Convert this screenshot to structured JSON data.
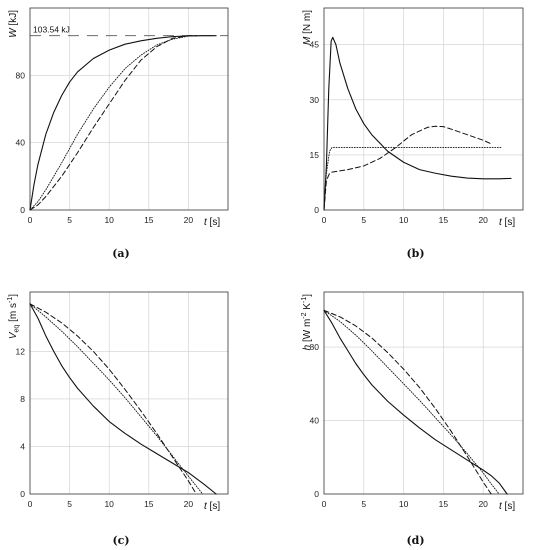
{
  "chart_data": [
    {
      "type": "line",
      "panel": "(a)",
      "ylabel": "W",
      "ylabel_unit": "[kJ]",
      "xlabel": "t",
      "xlabel_unit": "[s]",
      "xlim": [
        0,
        25
      ],
      "ylim": [
        0,
        120
      ],
      "xticks": [
        0,
        5,
        10,
        15,
        20
      ],
      "yticks": [
        0,
        40,
        80
      ],
      "annotation": "103.54 kJ",
      "reference_value": 103.54,
      "grid": true,
      "series": [
        {
          "style": "solid",
          "x": [
            0,
            0.5,
            1,
            2,
            3,
            4,
            5,
            6,
            8,
            10,
            12,
            14,
            16,
            18,
            20,
            22,
            23.5
          ],
          "y": [
            0,
            15,
            27,
            45,
            58,
            68,
            76,
            82,
            90,
            95,
            98.5,
            100.5,
            102,
            103,
            103.5,
            103.54,
            103.54
          ]
        },
        {
          "style": "dotted",
          "x": [
            0,
            1,
            2,
            4,
            6,
            8,
            10,
            12,
            14,
            16,
            18,
            20,
            21.5
          ],
          "y": [
            0,
            5,
            12,
            28,
            45,
            60,
            73,
            84,
            92,
            98,
            101.5,
            103.3,
            103.54
          ]
        },
        {
          "style": "dashed",
          "x": [
            0,
            1,
            2,
            4,
            6,
            8,
            10,
            12,
            14,
            16,
            18,
            20,
            21
          ],
          "y": [
            0,
            3,
            8,
            20,
            34,
            49,
            63,
            77,
            89,
            97,
            102,
            103.5,
            103.54
          ]
        }
      ]
    },
    {
      "type": "line",
      "panel": "(b)",
      "ylabel": "M",
      "ylabel_unit": "[N m]",
      "xlabel": "t",
      "xlabel_unit": "[s]",
      "xlim": [
        0,
        25
      ],
      "ylim": [
        0,
        55
      ],
      "xticks": [
        0,
        5,
        10,
        15,
        20
      ],
      "yticks": [
        0,
        15,
        30,
        45
      ],
      "grid": true,
      "series": [
        {
          "style": "solid",
          "x": [
            0,
            0.3,
            0.6,
            0.9,
            1.1,
            1.5,
            2,
            3,
            4,
            5,
            6,
            8,
            10,
            12,
            14,
            16,
            18,
            20,
            22,
            23.5
          ],
          "y": [
            0,
            12,
            33,
            46,
            47,
            45,
            40,
            33,
            27.5,
            23.5,
            20.5,
            16,
            13,
            11,
            10,
            9.2,
            8.7,
            8.5,
            8.5,
            8.6
          ]
        },
        {
          "style": "dotted",
          "x": [
            0,
            0.3,
            0.7,
            1,
            5,
            10,
            15,
            20,
            22.3
          ],
          "y": [
            0,
            10,
            16,
            17,
            17,
            17,
            17,
            17,
            17
          ]
        },
        {
          "style": "dashed",
          "x": [
            0,
            0.3,
            0.7,
            1,
            3,
            5,
            7,
            9,
            11,
            13,
            14,
            15,
            16,
            18,
            20,
            21
          ],
          "y": [
            0,
            8,
            10,
            10.3,
            11,
            12,
            14,
            17,
            20.5,
            22.5,
            22.8,
            22.7,
            22,
            20.5,
            19,
            18
          ]
        }
      ]
    },
    {
      "type": "line",
      "panel": "(c)",
      "ylabel": "V",
      "ylabel_sub": "eq",
      "ylabel_unit": "[m s",
      "ylabel_unit_sup": "-1",
      "ylabel_unit_end": "]",
      "xlabel": "t",
      "xlabel_unit": "[s]",
      "xlim": [
        0,
        25
      ],
      "ylim": [
        0,
        17
      ],
      "xticks": [
        0,
        5,
        10,
        15,
        20
      ],
      "yticks": [
        0,
        4,
        8,
        12
      ],
      "grid": true,
      "series": [
        {
          "style": "solid",
          "x": [
            0,
            1,
            2,
            3,
            4,
            5,
            6,
            8,
            10,
            12,
            14,
            16,
            18,
            20,
            22,
            23.5
          ],
          "y": [
            16,
            14.8,
            13.3,
            12,
            10.8,
            9.8,
            8.9,
            7.4,
            6.1,
            5.1,
            4.2,
            3.4,
            2.6,
            1.8,
            0.8,
            0
          ]
        },
        {
          "style": "dotted",
          "x": [
            0,
            2,
            4,
            6,
            8,
            10,
            12,
            14,
            16,
            18,
            20,
            21.8
          ],
          "y": [
            16,
            14.9,
            13.7,
            12.4,
            11,
            9.6,
            8.1,
            6.5,
            4.9,
            3.2,
            1.5,
            0
          ]
        },
        {
          "style": "dashed",
          "x": [
            0,
            2,
            4,
            6,
            8,
            10,
            12,
            14,
            16,
            18,
            20,
            21
          ],
          "y": [
            16,
            15.3,
            14.4,
            13.3,
            12,
            10.5,
            8.8,
            7,
            5.1,
            3.1,
            1.1,
            0
          ]
        }
      ]
    },
    {
      "type": "line",
      "panel": "(d)",
      "ylabel": "h",
      "ylabel_unit": "[W m",
      "ylabel_unit_sup": "-2",
      "ylabel_unit_mid": " K",
      "ylabel_unit_sup2": "-1",
      "ylabel_unit_end": "]",
      "xlabel": "t",
      "xlabel_unit": "[s]",
      "xlim": [
        0,
        25
      ],
      "ylim": [
        0,
        110
      ],
      "xticks": [
        0,
        5,
        10,
        15,
        20
      ],
      "yticks": [
        0,
        40,
        80
      ],
      "grid": true,
      "series": [
        {
          "style": "solid",
          "x": [
            0,
            1,
            2,
            3,
            4,
            5,
            6,
            8,
            10,
            12,
            14,
            16,
            18,
            20,
            21,
            22,
            23
          ],
          "y": [
            100,
            93,
            85,
            78,
            71,
            65,
            59.5,
            50.5,
            43,
            36,
            29.5,
            24,
            18.5,
            13,
            10,
            6,
            0
          ]
        },
        {
          "style": "dotted",
          "x": [
            0,
            2,
            4,
            6,
            8,
            10,
            12,
            14,
            16,
            18,
            20,
            21,
            22
          ],
          "y": [
            100,
            94,
            86.5,
            78,
            69,
            60,
            51,
            41.5,
            32,
            22,
            11.5,
            5.5,
            0
          ]
        },
        {
          "style": "dashed",
          "x": [
            0,
            2,
            4,
            6,
            8,
            10,
            12,
            14,
            16,
            18,
            19,
            20,
            21
          ],
          "y": [
            100,
            96.5,
            91.5,
            85,
            77,
            68,
            58,
            46.5,
            34,
            20.5,
            13.5,
            6.5,
            0
          ]
        }
      ]
    }
  ]
}
